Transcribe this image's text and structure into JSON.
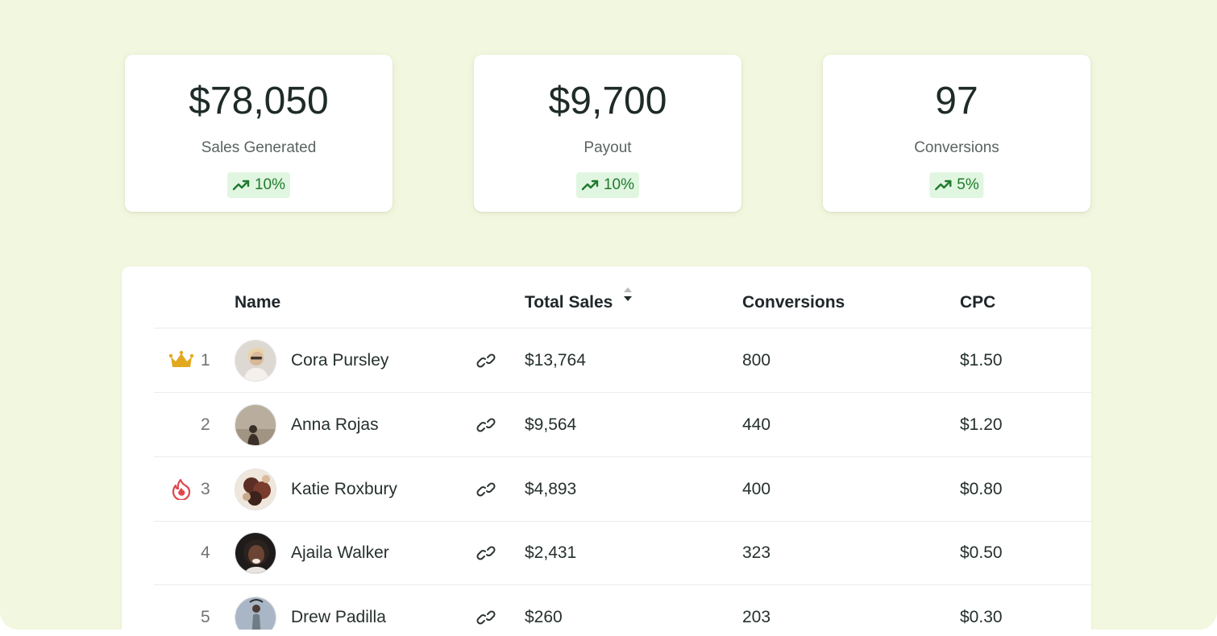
{
  "stats": [
    {
      "value": "$78,050",
      "label": "Sales Generated",
      "trend": "10%",
      "trend_icon": "trending-up-icon"
    },
    {
      "value": "$9,700",
      "label": "Payout",
      "trend": "10%",
      "trend_icon": "trending-up-icon"
    },
    {
      "value": "97",
      "label": "Conversions",
      "trend": "5%",
      "trend_icon": "trending-up-icon"
    }
  ],
  "table": {
    "columns": {
      "name": "Name",
      "total_sales": "Total Sales",
      "conversions": "Conversions",
      "cpc": "CPC"
    },
    "sort_icon": "sort-icon",
    "rows": [
      {
        "rank": "1",
        "badge": "crown-icon",
        "name": "Cora Pursley",
        "total_sales": "$13,764",
        "conversions": "800",
        "cpc": "$1.50"
      },
      {
        "rank": "2",
        "badge": "",
        "name": "Anna Rojas",
        "total_sales": "$9,564",
        "conversions": "440",
        "cpc": "$1.20"
      },
      {
        "rank": "3",
        "badge": "fire-icon",
        "name": "Katie Roxbury",
        "total_sales": "$4,893",
        "conversions": "400",
        "cpc": "$0.80"
      },
      {
        "rank": "4",
        "badge": "",
        "name": "Ajaila Walker",
        "total_sales": "$2,431",
        "conversions": "323",
        "cpc": "$0.50"
      },
      {
        "rank": "5",
        "badge": "",
        "name": "Drew Padilla",
        "total_sales": "$260",
        "conversions": "203",
        "cpc": "$0.30"
      }
    ]
  },
  "colors": {
    "page_background": "#f2f7df",
    "trend_background": "#e1f6e1",
    "trend_text": "#1f7a2c",
    "crown": "#e2a81e",
    "fire": "#e0474c"
  }
}
